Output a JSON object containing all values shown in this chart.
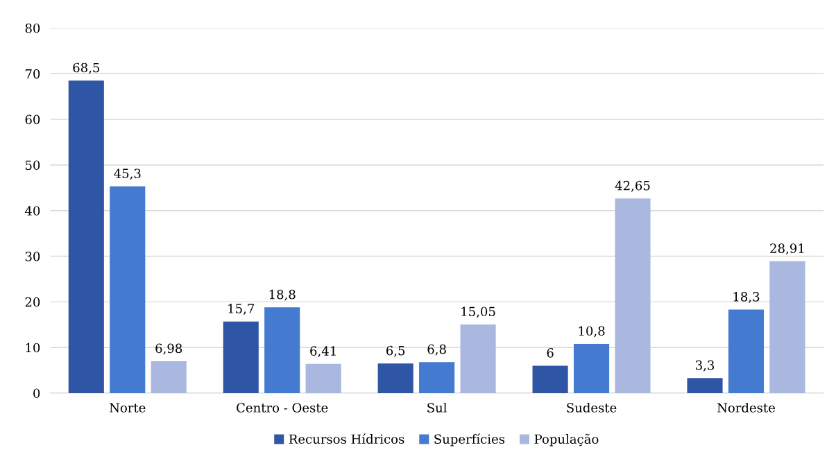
{
  "chart_data": {
    "type": "bar",
    "categories": [
      "Norte",
      "Centro - Oeste",
      "Sul",
      "Sudeste",
      "Nordeste"
    ],
    "series": [
      {
        "name": "Recursos Hídricos",
        "color": "#2f56a5",
        "values": [
          68.5,
          15.7,
          6.5,
          6,
          3.3
        ],
        "value_labels": [
          "68,5",
          "15,7",
          "6,5",
          "6",
          "3,3"
        ]
      },
      {
        "name": "Superfícies",
        "color": "#447ad0",
        "values": [
          45.3,
          18.8,
          6.8,
          10.8,
          18.3
        ],
        "value_labels": [
          "45,3",
          "18,8",
          "6,8",
          "10,8",
          "18,3"
        ]
      },
      {
        "name": "População",
        "color": "#aab8df",
        "values": [
          6.98,
          6.41,
          15.05,
          42.65,
          28.91
        ],
        "value_labels": [
          "6,98",
          "6,41",
          "15,05",
          "42,65",
          "28,91"
        ]
      }
    ],
    "ylim": [
      0,
      80
    ],
    "yticks": [
      0,
      10,
      20,
      30,
      40,
      50,
      60,
      70,
      80
    ],
    "grid": "y",
    "legend": "bottom"
  }
}
